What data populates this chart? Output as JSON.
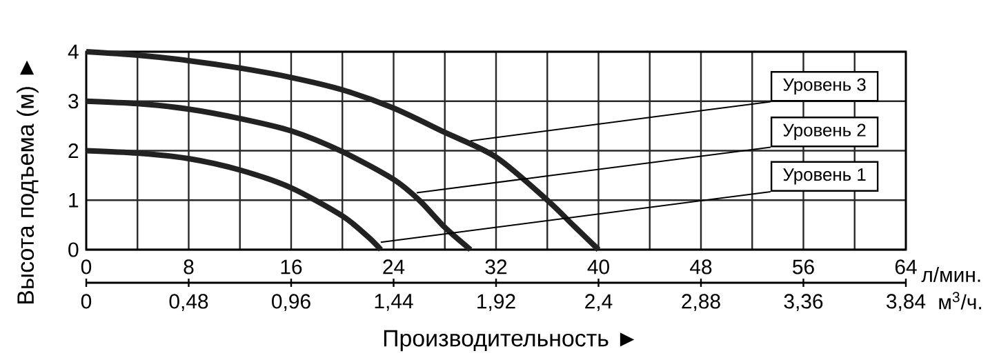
{
  "chart_data": {
    "type": "line",
    "xlabel": "л/мин.",
    "x2label": "м$^{3}$/ч.",
    "ylabel": "Высота подъема (м) ►",
    "annotations": [
      "Производительность ►",
      {
        "text": "Уровень 3",
        "x": 30,
        "y": 2.2
      },
      {
        "text": "Уровень 2",
        "x": 25.8,
        "y": 1.15
      },
      {
        "text": "Уровень 1",
        "x": 23,
        "y": 0.15
      }
    ],
    "series": [
      {
        "color": "#222222",
        "x": [
          0,
          4,
          8,
          12,
          16,
          20,
          22,
          23
        ],
        "values": [
          2,
          1.95,
          1.84,
          1.61,
          1.25,
          0.68,
          0.26,
          0
        ]
      },
      {
        "color": "#222222",
        "x": [
          0,
          4,
          8,
          12,
          16,
          20,
          24,
          26,
          28,
          30
        ],
        "values": [
          3,
          2.95,
          2.84,
          2.65,
          2.4,
          1.98,
          1.42,
          1.0,
          0.45,
          0
        ]
      },
      {
        "color": "#222222",
        "x": [
          0,
          4,
          8,
          12,
          16,
          20,
          24,
          28,
          32,
          36,
          38,
          40
        ],
        "values": [
          4,
          3.93,
          3.82,
          3.67,
          3.48,
          3.23,
          2.86,
          2.37,
          1.87,
          1.0,
          0.5,
          0
        ]
      }
    ],
    "xlim": [
      0,
      64
    ],
    "xticks": [
      0,
      {
        "value": 4,
        "label": null
      },
      8,
      {
        "value": 12,
        "label": null
      },
      16,
      {
        "value": 20,
        "label": null
      },
      24,
      {
        "value": 28,
        "label": null
      },
      32,
      {
        "value": 36,
        "label": null
      },
      40,
      {
        "value": 44,
        "label": null
      },
      48,
      {
        "value": 52,
        "label": null
      },
      56,
      {
        "value": 60,
        "label": null
      },
      64
    ],
    "x2lim": [
      0,
      3.84
    ],
    "x2ticks": [
      0,
      {
        "value": 0.48,
        "label": "0,48"
      },
      {
        "value": 0.96,
        "label": "0,96"
      },
      {
        "value": 1.44,
        "label": "1,44"
      },
      {
        "value": 1.92,
        "label": "1,92"
      },
      {
        "value": 2.4,
        "label": "2,4"
      },
      {
        "value": 2.88,
        "label": "2,88"
      },
      {
        "value": 3.36,
        "label": "3,36"
      },
      {
        "value": 3.84,
        "label": "3,84"
      }
    ],
    "ylim": [
      0,
      4
    ],
    "yticks": [
      0,
      1,
      2,
      3,
      4
    ],
    "grid": true
  }
}
